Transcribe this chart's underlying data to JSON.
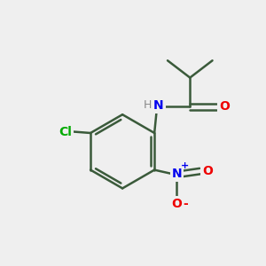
{
  "background_color": "#efefef",
  "bond_color": "#3a5a3a",
  "atom_colors": {
    "N": "#0000ee",
    "O": "#ee0000",
    "Cl": "#00aa00",
    "H": "#888888",
    "C": "#000000"
  },
  "figsize": [
    3.0,
    3.0
  ],
  "dpi": 100
}
